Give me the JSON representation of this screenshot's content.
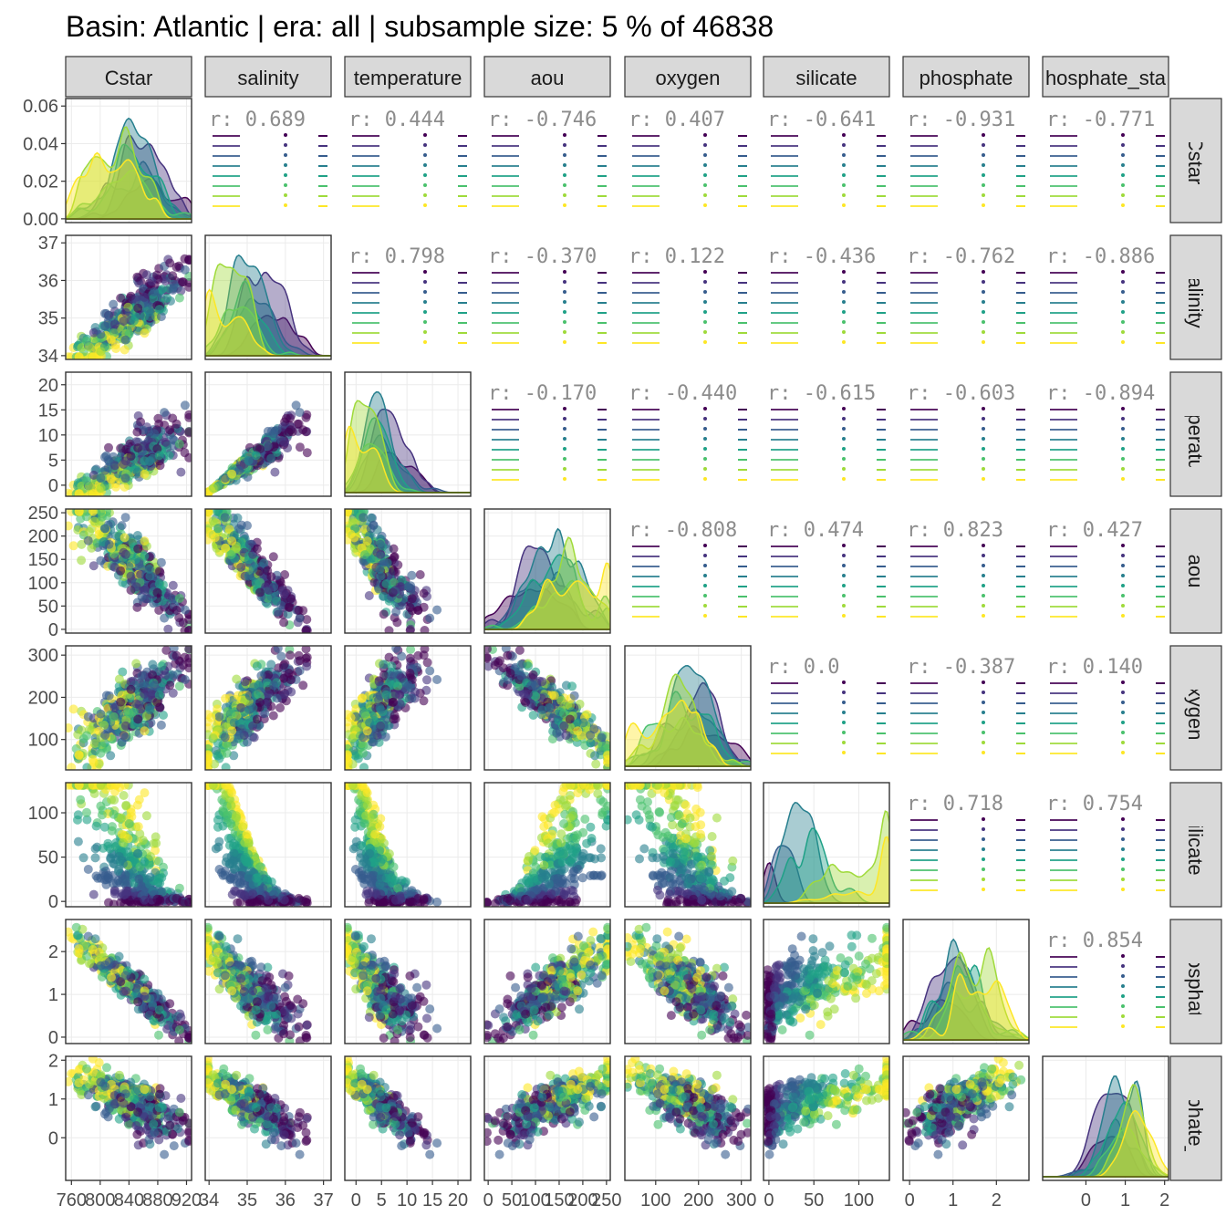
{
  "title": "Basin: Atlantic | era: all | subsample size: 5 % of 46838",
  "chart_data": {
    "type": "scatter",
    "layout": "pairs-matrix",
    "variables": [
      "Cstar",
      "salinity",
      "temperature",
      "aou",
      "oxygen",
      "silicate",
      "phosphate",
      "phosphate_star"
    ],
    "strip_labels": {
      "top": [
        "Cstar",
        "salinity",
        "temperature",
        "aou",
        "oxygen",
        "silicate",
        "phosphate",
        "hosphate_sta"
      ],
      "right": [
        "Cstar",
        "salinity",
        "temperature",
        "aou",
        "oxygen",
        "silicate",
        "phosphate",
        "hosphate_st"
      ]
    },
    "colors": {
      "palette": [
        "#440154",
        "#46337E",
        "#365C8D",
        "#277F8E",
        "#1FA187",
        "#4AC16D",
        "#9FDA3A",
        "#FDE725"
      ],
      "panel_border": "#333333",
      "strip_fill": "#d9d9d9",
      "grid": "#ebebeb",
      "text": "#4d4d4d",
      "corr_text": "#8c8c8c"
    },
    "x_axes": [
      {
        "ticks": [
          760,
          800,
          840,
          880,
          920
        ],
        "labels": [
          "760",
          "800",
          "840",
          "880",
          "920"
        ],
        "lim": [
          752,
          927
        ]
      },
      {
        "ticks": [
          34,
          35,
          36,
          37
        ],
        "labels": [
          "34",
          "35",
          "36",
          "37"
        ],
        "lim": [
          33.9,
          37.2
        ]
      },
      {
        "ticks": [
          0,
          5,
          10,
          15,
          20
        ],
        "labels": [
          "0",
          "5",
          "10",
          "15",
          "20"
        ],
        "lim": [
          -2.2,
          22.5
        ]
      },
      {
        "ticks": [
          0,
          50,
          100,
          150,
          200,
          250
        ],
        "labels": [
          "0",
          "50",
          "100",
          "150",
          "200",
          "250"
        ],
        "lim": [
          -8,
          258
        ]
      },
      {
        "ticks": [
          100,
          200,
          300
        ],
        "labels": [
          "100",
          "200",
          "300"
        ],
        "lim": [
          28,
          322
        ]
      },
      {
        "ticks": [
          0,
          50,
          100
        ],
        "labels": [
          "0",
          "50",
          "100"
        ],
        "lim": [
          -6,
          134
        ]
      },
      {
        "ticks": [
          0,
          1,
          2
        ],
        "labels": [
          "0",
          "1",
          "2"
        ],
        "lim": [
          -0.15,
          2.75
        ]
      },
      {
        "ticks": [
          0,
          1,
          2
        ],
        "labels": [
          "0",
          "1",
          "2"
        ],
        "lim": [
          -1.1,
          2.1
        ]
      }
    ],
    "y_axes": [
      {
        "ticks": [
          0.0,
          0.02,
          0.04,
          0.06
        ],
        "labels": [
          "0.00",
          "0.02",
          "0.04",
          "0.06"
        ],
        "lim": [
          -0.002,
          0.064
        ]
      },
      {
        "ticks": [
          34,
          35,
          36,
          37
        ],
        "labels": [
          "34",
          "35",
          "36",
          "37"
        ],
        "lim": [
          33.9,
          37.2
        ]
      },
      {
        "ticks": [
          0,
          5,
          10,
          15,
          20
        ],
        "labels": [
          "0",
          "5",
          "10",
          "15",
          "20"
        ],
        "lim": [
          -2.2,
          22.5
        ]
      },
      {
        "ticks": [
          0,
          50,
          100,
          150,
          200,
          250
        ],
        "labels": [
          "0",
          "50",
          "100",
          "150",
          "200",
          "250"
        ],
        "lim": [
          -8,
          258
        ]
      },
      {
        "ticks": [
          100,
          200,
          300
        ],
        "labels": [
          "100",
          "200",
          "300"
        ],
        "lim": [
          28,
          322
        ]
      },
      {
        "ticks": [
          0,
          50,
          100
        ],
        "labels": [
          "0",
          "50",
          "100"
        ],
        "lim": [
          -6,
          134
        ]
      },
      {
        "ticks": [
          0,
          1,
          2
        ],
        "labels": [
          "0",
          "1",
          "2"
        ],
        "lim": [
          -0.15,
          2.75
        ]
      },
      {
        "ticks": [
          0,
          1,
          2
        ],
        "labels": [
          "0",
          "1",
          "2"
        ],
        "lim": [
          -1.1,
          2.1
        ]
      }
    ],
    "correlations_shown": [
      {
        "row": "Cstar",
        "col": "salinity",
        "text": "r: 0.689"
      },
      {
        "row": "Cstar",
        "col": "temperature",
        "text": "r: 0.444"
      },
      {
        "row": "Cstar",
        "col": "aou",
        "text": "r: -0.746"
      },
      {
        "row": "Cstar",
        "col": "oxygen",
        "text": "r: 0.407"
      },
      {
        "row": "Cstar",
        "col": "silicate",
        "text": "r: -0.641"
      },
      {
        "row": "Cstar",
        "col": "phosphate",
        "text": "r: -0.931"
      },
      {
        "row": "Cstar",
        "col": "phosphate_star",
        "text": "r: -0.771"
      },
      {
        "row": "salinity",
        "col": "temperature",
        "text": "r: 0.798"
      },
      {
        "row": "salinity",
        "col": "aou",
        "text": "r: -0.370"
      },
      {
        "row": "salinity",
        "col": "oxygen",
        "text": "r: 0.122"
      },
      {
        "row": "salinity",
        "col": "silicate",
        "text": "r: -0.436"
      },
      {
        "row": "salinity",
        "col": "phosphate",
        "text": "r: -0.762"
      },
      {
        "row": "salinity",
        "col": "phosphate_star",
        "text": "r: -0.886"
      },
      {
        "row": "temperature",
        "col": "aou",
        "text": "r: -0.170"
      },
      {
        "row": "temperature",
        "col": "oxygen",
        "text": "r: -0.440"
      },
      {
        "row": "temperature",
        "col": "silicate",
        "text": "r: -0.615"
      },
      {
        "row": "temperature",
        "col": "phosphate",
        "text": "r: -0.603"
      },
      {
        "row": "temperature",
        "col": "phosphate_star",
        "text": "r: -0.894"
      },
      {
        "row": "aou",
        "col": "oxygen",
        "text": "r: -0.808"
      },
      {
        "row": "aou",
        "col": "silicate",
        "text": "r: 0.474"
      },
      {
        "row": "aou",
        "col": "phosphate",
        "text": "r: 0.823"
      },
      {
        "row": "aou",
        "col": "phosphate_star",
        "text": "r: 0.427"
      },
      {
        "row": "oxygen",
        "col": "silicate",
        "text": "r: 0.0"
      },
      {
        "row": "oxygen",
        "col": "phosphate",
        "text": "r: -0.387"
      },
      {
        "row": "oxygen",
        "col": "phosphate_star",
        "text": "r: 0.140"
      },
      {
        "row": "silicate",
        "col": "phosphate",
        "text": "r: 0.718"
      },
      {
        "row": "silicate",
        "col": "phosphate_star",
        "text": "r: 0.754"
      },
      {
        "row": "phosphate",
        "col": "phosphate_star",
        "text": "r: 0.854"
      }
    ],
    "grid": true,
    "legend": "none"
  }
}
